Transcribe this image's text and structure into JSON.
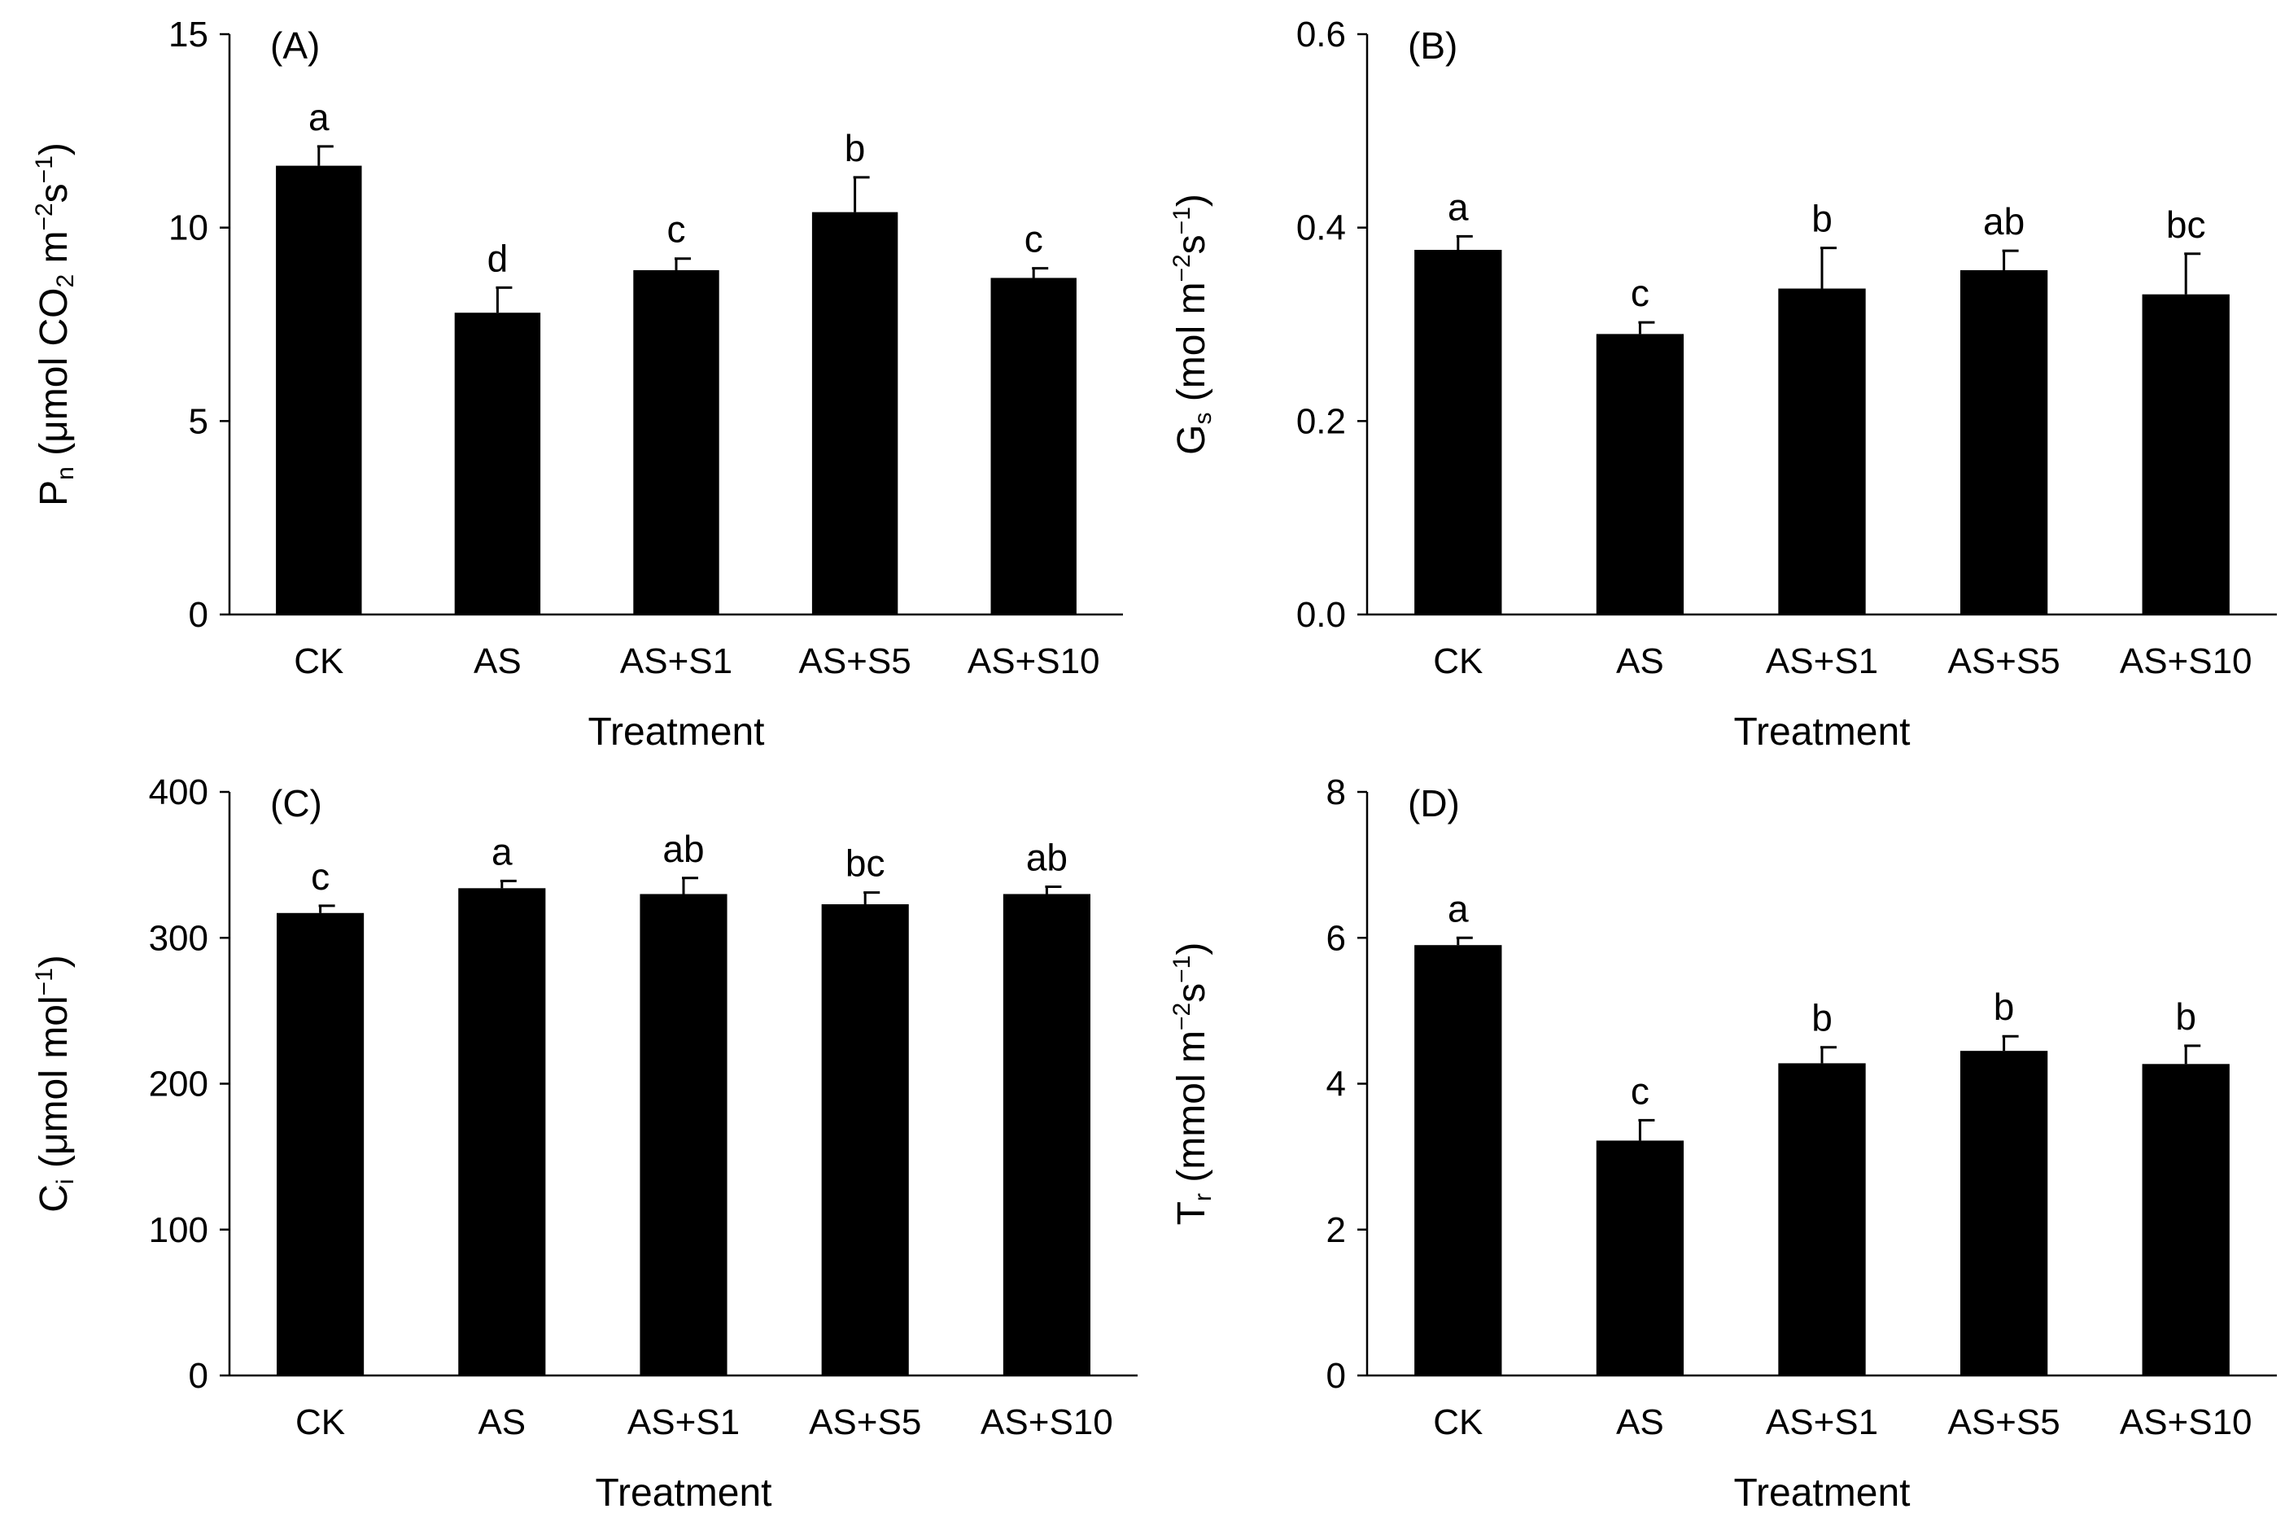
{
  "figure": {
    "x_title": "Treatment",
    "categories": [
      "CK",
      "AS",
      "AS+S1",
      "AS+S5",
      "AS+S10"
    ]
  },
  "chart_data": [
    {
      "type": "bar",
      "panel": "(A)",
      "categories": [
        "CK",
        "AS",
        "AS+S1",
        "AS+S5",
        "AS+S10"
      ],
      "values": [
        11.6,
        7.8,
        8.9,
        10.4,
        8.7
      ],
      "errors": [
        0.5,
        0.65,
        0.3,
        0.9,
        0.25
      ],
      "significance": [
        "a",
        "d",
        "c",
        "b",
        "c"
      ],
      "xlabel": "Treatment",
      "ylabel": {
        "main": "P",
        "sub": "n",
        "unit_pre": "(μmol CO",
        "unit_sub": "2",
        "unit_post": " m",
        "sup1": "−2",
        "mid": "s",
        "sup2": "−1",
        "close": ")"
      },
      "ylim": [
        0,
        15
      ],
      "yticks": [
        0,
        5,
        10,
        15
      ],
      "ytick_labels": [
        "0",
        "5",
        "10",
        "15"
      ]
    },
    {
      "type": "bar",
      "panel": "(B)",
      "categories": [
        "CK",
        "AS",
        "AS+S1",
        "AS+S5",
        "AS+S10"
      ],
      "values": [
        0.377,
        0.29,
        0.337,
        0.356,
        0.331
      ],
      "errors": [
        0.014,
        0.012,
        0.042,
        0.02,
        0.042
      ],
      "significance": [
        "a",
        "c",
        "b",
        "ab",
        "bc"
      ],
      "xlabel": "Treatment",
      "ylabel": {
        "main": "G",
        "sub": "s",
        "unit_pre": "(mol m",
        "unit_sub": "",
        "unit_post": "",
        "sup1": "−2",
        "mid": "s",
        "sup2": "−1",
        "close": ")"
      },
      "ylim": [
        0,
        0.6
      ],
      "yticks": [
        0,
        0.2,
        0.4,
        0.6
      ],
      "ytick_labels": [
        "0.0",
        "0.2",
        "0.4",
        "0.6"
      ]
    },
    {
      "type": "bar",
      "panel": "(C)",
      "categories": [
        "CK",
        "AS",
        "AS+S1",
        "AS+S5",
        "AS+S10"
      ],
      "values": [
        317,
        334,
        330,
        323,
        330
      ],
      "errors": [
        5,
        5,
        11,
        8,
        5
      ],
      "significance": [
        "c",
        "a",
        "ab",
        "bc",
        "ab"
      ],
      "xlabel": "Treatment",
      "ylabel": {
        "main": "C",
        "sub": "i",
        "unit_pre": "(μmol mol",
        "unit_sub": "",
        "unit_post": "",
        "sup1": "−1",
        "mid": "",
        "sup2": "",
        "close": ")"
      },
      "ylim": [
        0,
        400
      ],
      "yticks": [
        0,
        100,
        200,
        300,
        400
      ],
      "ytick_labels": [
        "0",
        "100",
        "200",
        "300",
        "400"
      ]
    },
    {
      "type": "bar",
      "panel": "(D)",
      "categories": [
        "CK",
        "AS",
        "AS+S1",
        "AS+S5",
        "AS+S10"
      ],
      "values": [
        5.9,
        3.22,
        4.28,
        4.45,
        4.27
      ],
      "errors": [
        0.1,
        0.28,
        0.22,
        0.2,
        0.25
      ],
      "significance": [
        "a",
        "c",
        "b",
        "b",
        "b"
      ],
      "xlabel": "Treatment",
      "ylabel": {
        "main": "T",
        "sub": "r",
        "unit_pre": "(mmol m",
        "unit_sub": "",
        "unit_post": "",
        "sup1": "−2",
        "mid": "s",
        "sup2": "−1",
        "close": ")"
      },
      "ylim": [
        0,
        8
      ],
      "yticks": [
        0,
        2,
        4,
        6,
        8
      ],
      "ytick_labels": [
        "0",
        "2",
        "4",
        "6",
        "8"
      ]
    }
  ]
}
